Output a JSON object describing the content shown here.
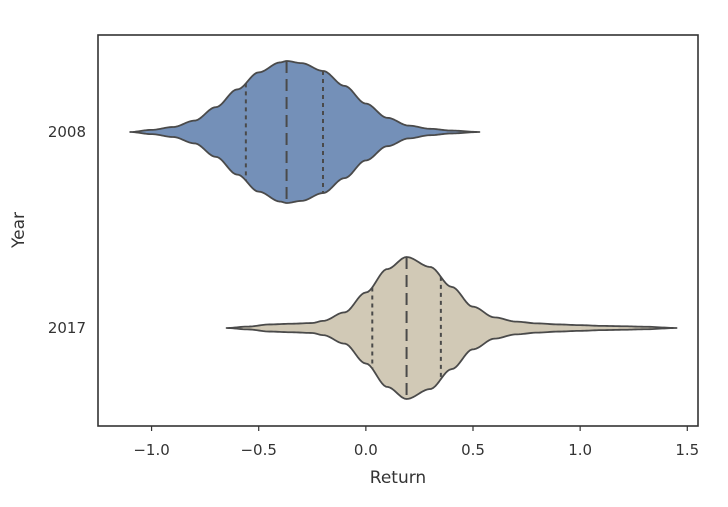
{
  "chart_data": {
    "type": "violin",
    "orientation": "horizontal",
    "xlabel": "Return",
    "ylabel": "Year",
    "xlim": [
      -1.25,
      1.55
    ],
    "xticks": [
      -1.0,
      -0.5,
      0.0,
      0.5,
      1.0,
      1.5
    ],
    "xtick_labels": [
      "−1.0",
      "−0.5",
      "0.0",
      "0.5",
      "1.0",
      "1.5"
    ],
    "categories": [
      "2008",
      "2017"
    ],
    "grid": false,
    "inner": "quartile",
    "series": [
      {
        "category": "2008",
        "color": "#7490b8",
        "min": -1.1,
        "max": 0.53,
        "q1": -0.56,
        "median": -0.37,
        "q3": -0.2,
        "density_profile": [
          [
            -1.1,
            0.0
          ],
          [
            -1.0,
            0.03
          ],
          [
            -0.9,
            0.07
          ],
          [
            -0.8,
            0.16
          ],
          [
            -0.7,
            0.35
          ],
          [
            -0.6,
            0.6
          ],
          [
            -0.5,
            0.84
          ],
          [
            -0.4,
            0.98
          ],
          [
            -0.37,
            1.0
          ],
          [
            -0.3,
            0.97
          ],
          [
            -0.2,
            0.86
          ],
          [
            -0.1,
            0.65
          ],
          [
            0.0,
            0.4
          ],
          [
            0.1,
            0.2
          ],
          [
            0.2,
            0.09
          ],
          [
            0.3,
            0.045
          ],
          [
            0.4,
            0.02
          ],
          [
            0.53,
            0.0
          ]
        ]
      },
      {
        "category": "2017",
        "color": "#d1c9b6",
        "min": -0.65,
        "max": 1.45,
        "q1": 0.03,
        "median": 0.19,
        "q3": 0.35,
        "density_profile": [
          [
            -0.65,
            0.0
          ],
          [
            -0.55,
            0.02
          ],
          [
            -0.45,
            0.05
          ],
          [
            -0.35,
            0.06
          ],
          [
            -0.25,
            0.07
          ],
          [
            -0.2,
            0.1
          ],
          [
            -0.1,
            0.22
          ],
          [
            0.0,
            0.5
          ],
          [
            0.1,
            0.83
          ],
          [
            0.19,
            1.0
          ],
          [
            0.3,
            0.86
          ],
          [
            0.4,
            0.58
          ],
          [
            0.5,
            0.3
          ],
          [
            0.6,
            0.15
          ],
          [
            0.7,
            0.09
          ],
          [
            0.8,
            0.065
          ],
          [
            0.9,
            0.05
          ],
          [
            1.0,
            0.04
          ],
          [
            1.1,
            0.03
          ],
          [
            1.2,
            0.025
          ],
          [
            1.3,
            0.018
          ],
          [
            1.45,
            0.0
          ]
        ]
      }
    ]
  }
}
